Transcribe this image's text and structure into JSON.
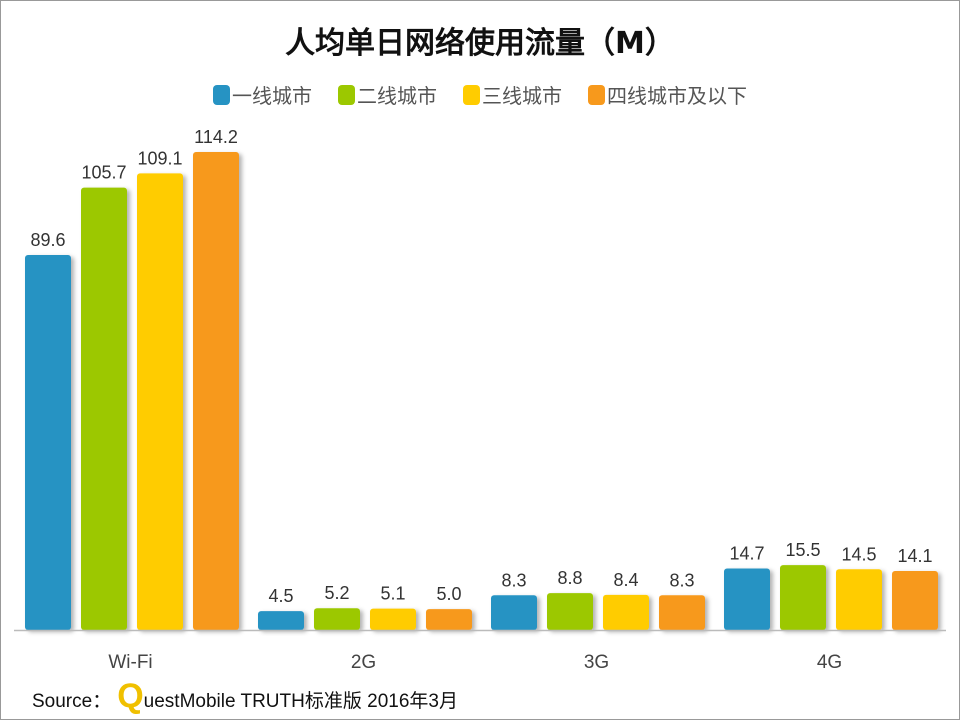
{
  "chart_data": {
    "type": "bar",
    "title": "人均单日网络使用流量（M）",
    "categories": [
      "Wi-Fi",
      "2G",
      "3G",
      "4G"
    ],
    "series": [
      {
        "name": "一线城市",
        "color": "#2693c3",
        "values": [
          89.6,
          4.5,
          8.3,
          14.7
        ]
      },
      {
        "name": "二线城市",
        "color": "#9cc800",
        "values": [
          105.7,
          5.2,
          8.8,
          15.5
        ]
      },
      {
        "name": "三线城市",
        "color": "#ffcc00",
        "values": [
          109.1,
          5.1,
          8.4,
          14.5
        ]
      },
      {
        "name": "四线城市及以下",
        "color": "#f7991c",
        "values": [
          114.2,
          5.0,
          8.3,
          14.1
        ]
      }
    ],
    "ylim": [
      0,
      114.2
    ],
    "legend": "top",
    "grid": false,
    "data_labels": true
  },
  "source": {
    "prefix": "Source：",
    "logo_letter": "Q",
    "text": "uestMobile TRUTH标准版 2016年3月"
  }
}
